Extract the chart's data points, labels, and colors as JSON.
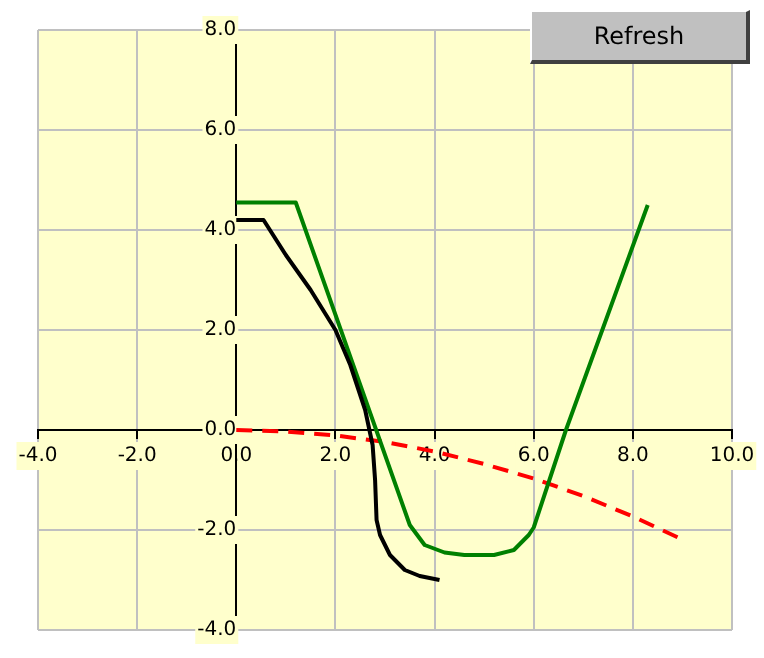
{
  "chart_data": {
    "type": "line",
    "xlim": [
      -4,
      10
    ],
    "xticks": [
      {
        "value": -4,
        "label": "-4.0"
      },
      {
        "value": -2,
        "label": "-2.0"
      },
      {
        "value": 0,
        "label": "0.0"
      },
      {
        "value": 2,
        "label": "2.0"
      },
      {
        "value": 4,
        "label": "4.0"
      },
      {
        "value": 6,
        "label": "6.0"
      },
      {
        "value": 8,
        "label": "8.0"
      },
      {
        "value": 10,
        "label": "10.0"
      }
    ],
    "ylim": [
      -4,
      8
    ],
    "yticks": [
      {
        "value": -4,
        "label": "-4.0"
      },
      {
        "value": -2,
        "label": "-2.0"
      },
      {
        "value": 0,
        "label": "0.0"
      },
      {
        "value": 2,
        "label": "2.0"
      },
      {
        "value": 4,
        "label": "4.0"
      },
      {
        "value": 6,
        "label": "6.0"
      },
      {
        "value": 8,
        "label": "8.0"
      }
    ],
    "grid": true,
    "legend": false,
    "marker": "none",
    "annotations": [
      "Refresh"
    ],
    "series": [
      {
        "color": "#000000",
        "line_style": "solid",
        "x": [
          0,
          0.55,
          1,
          1.5,
          2,
          2.3,
          2.6,
          2.75,
          2.8,
          2.83,
          2.9,
          3.1,
          3.4,
          3.7,
          4.1
        ],
        "values": [
          4.2,
          4.2,
          3.5,
          2.8,
          2,
          1.3,
          0.4,
          -0.3,
          -1,
          -1.8,
          -2.1,
          -2.5,
          -2.8,
          -2.92,
          -3
        ]
      },
      {
        "color": "#008000",
        "line_style": "solid",
        "x": [
          0,
          1.2,
          3.5,
          3.8,
          4.2,
          4.6,
          5.2,
          5.6,
          5.9,
          6,
          6.65,
          8.3
        ],
        "values": [
          4.55,
          4.55,
          -1.9,
          -2.3,
          -2.45,
          -2.5,
          -2.5,
          -2.4,
          -2.1,
          -1.95,
          0,
          4.5
        ]
      },
      {
        "color": "#ff0000",
        "line_style": "dashed",
        "x": [
          0,
          1,
          2,
          3,
          4,
          5,
          6,
          7,
          8,
          9
        ],
        "values": [
          0,
          -0.03,
          -0.11,
          -0.24,
          -0.43,
          -0.68,
          -0.97,
          -1.32,
          -1.73,
          -2.19
        ]
      }
    ]
  }
}
